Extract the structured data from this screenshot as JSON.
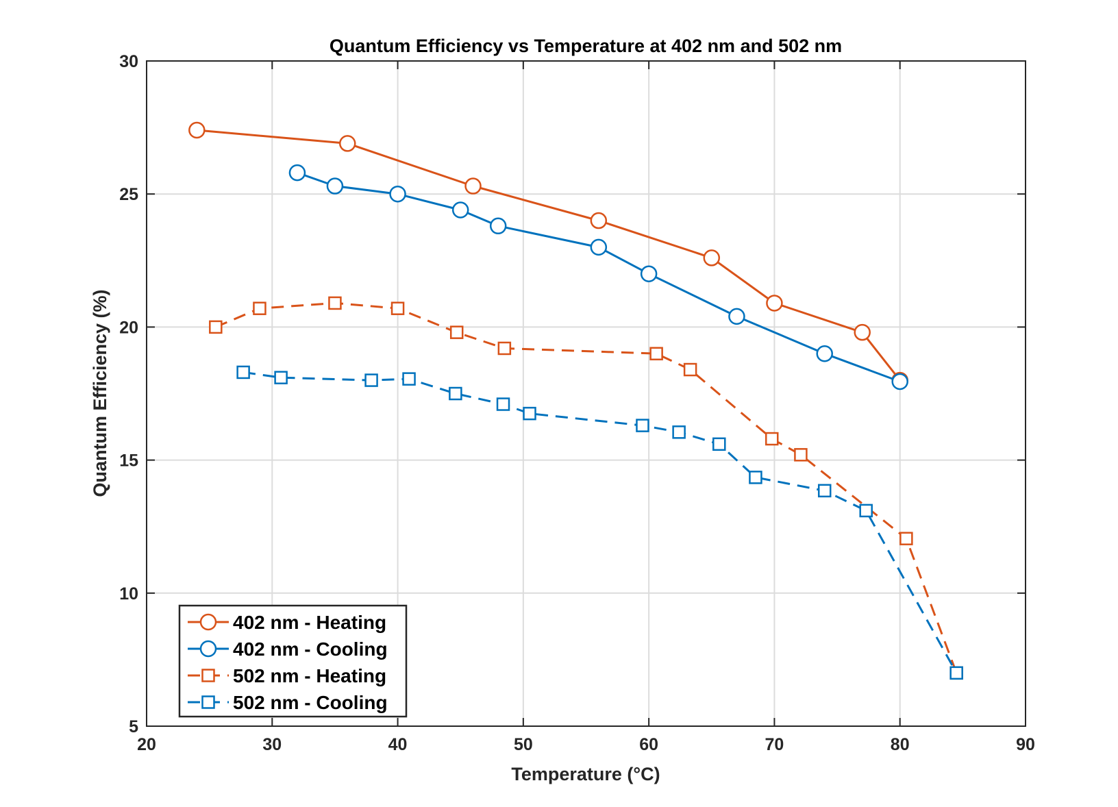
{
  "chart_data": {
    "type": "line",
    "title": "Quantum Efficiency vs Temperature at 402 nm and 502 nm",
    "xlabel": "Temperature (°C)",
    "ylabel": "Quantum Efficiency (%)",
    "xlim": [
      20,
      90
    ],
    "ylim": [
      5,
      30
    ],
    "xticks": [
      20,
      30,
      40,
      50,
      60,
      70,
      80,
      90
    ],
    "yticks": [
      5,
      10,
      15,
      20,
      25,
      30
    ],
    "grid": true,
    "legend_position": "bottom-left",
    "series": [
      {
        "name": "402 nm - Heating",
        "color": "#D95319",
        "marker": "circle",
        "line_style": "solid",
        "x": [
          24,
          36,
          46,
          56,
          65,
          70,
          77,
          80
        ],
        "y": [
          27.4,
          26.9,
          25.3,
          24.0,
          22.6,
          20.9,
          19.8,
          18.0
        ]
      },
      {
        "name": "402 nm - Cooling",
        "color": "#0072BD",
        "marker": "circle",
        "line_style": "solid",
        "x": [
          32,
          35,
          40,
          45,
          48,
          56,
          60,
          67,
          74,
          80
        ],
        "y": [
          25.8,
          25.3,
          25.0,
          24.4,
          23.8,
          23.0,
          22.0,
          20.4,
          19.0,
          17.95
        ]
      },
      {
        "name": "502 nm - Heating",
        "color": "#D95319",
        "marker": "square",
        "line_style": "dashed",
        "x": [
          25.5,
          29,
          35,
          40,
          44.7,
          48.5,
          60.6,
          63.3,
          69.8,
          72.1,
          80.5,
          84.5
        ],
        "y": [
          20.0,
          20.7,
          20.9,
          20.7,
          19.8,
          19.2,
          19.0,
          18.4,
          15.8,
          15.2,
          12.05,
          7.0
        ]
      },
      {
        "name": "502 nm - Cooling",
        "color": "#0072BD",
        "marker": "square",
        "line_style": "dashed",
        "x": [
          27.7,
          30.7,
          37.9,
          40.9,
          44.6,
          48.4,
          50.5,
          59.5,
          62.4,
          65.6,
          68.5,
          74.0,
          77.3,
          84.5
        ],
        "y": [
          18.3,
          18.1,
          18.0,
          18.05,
          17.5,
          17.1,
          16.75,
          16.3,
          16.05,
          15.6,
          14.35,
          13.85,
          13.1,
          7.0
        ]
      }
    ]
  }
}
